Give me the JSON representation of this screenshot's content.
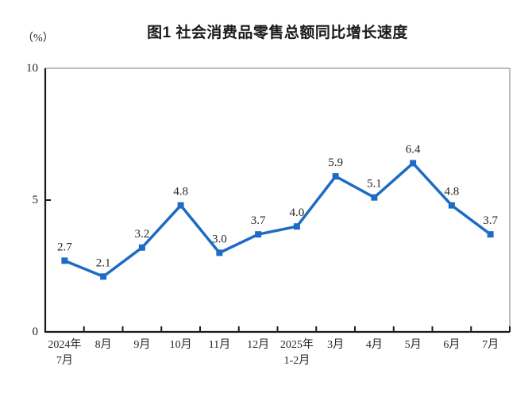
{
  "chart_data": {
    "type": "line",
    "title": "图1 社会消费品零售总额同比增长速度",
    "unit": "（%）",
    "categories": [
      [
        "2024年",
        "7月"
      ],
      [
        "8月"
      ],
      [
        "9月"
      ],
      [
        "10月"
      ],
      [
        "11月"
      ],
      [
        "12月"
      ],
      [
        "2025年",
        "1-2月"
      ],
      [
        "3月"
      ],
      [
        "4月"
      ],
      [
        "5月"
      ],
      [
        "6月"
      ],
      [
        "7月"
      ]
    ],
    "values": [
      2.7,
      2.1,
      3.2,
      4.8,
      3.0,
      3.7,
      4.0,
      5.9,
      5.1,
      6.4,
      4.8,
      3.7
    ],
    "point_labels": [
      "2.7",
      "2.1",
      "3.2",
      "4.8",
      "3.0",
      "3.7",
      "4.0",
      "5.9",
      "5.1",
      "6.4",
      "4.8",
      "3.7"
    ],
    "ylim": [
      0,
      10
    ],
    "yticks": [
      0,
      5,
      10
    ],
    "grid": false,
    "legend": "none",
    "marker": "square",
    "colors": {
      "line": "#1e6bc3",
      "axis": "#1a1a1a",
      "border": "#a8a8a8",
      "text": "#262626"
    }
  }
}
